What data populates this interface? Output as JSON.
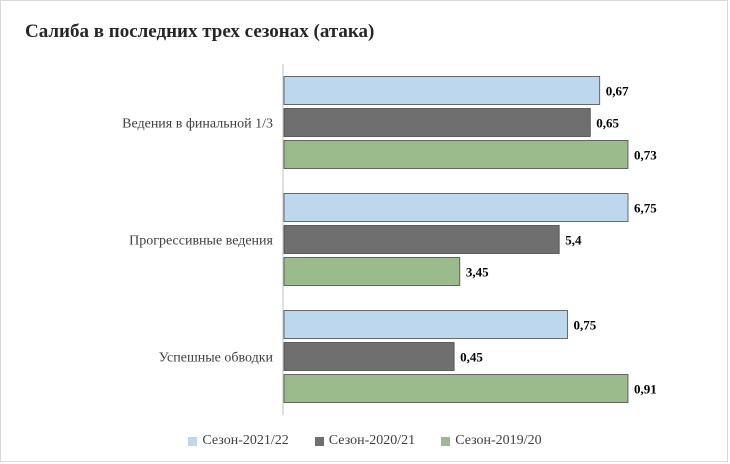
{
  "chart_data": {
    "type": "bar",
    "orientation": "horizontal",
    "title": "Салиба в последних трех сезонах (атака)",
    "categories": [
      "Ведения в финальной 1/3",
      "Прогрессивные ведения",
      "Успешные обводки"
    ],
    "series": [
      {
        "name": "Сезон-2021/22",
        "color": "#bdd7ee",
        "values": [
          0.67,
          6.75,
          0.75
        ],
        "labels": [
          "0,67",
          "6,75",
          "0,75"
        ]
      },
      {
        "name": "Сезон-2020/21",
        "color": "#6f6f6f",
        "values": [
          0.65,
          5.4,
          0.45
        ],
        "labels": [
          "0,65",
          "5,4",
          "0,45"
        ]
      },
      {
        "name": "Сезон-2019/20",
        "color": "#9bbb8c",
        "values": [
          0.73,
          3.45,
          0.91
        ],
        "labels": [
          "0,73",
          "3,45",
          "0,91"
        ]
      }
    ],
    "legend_position": "bottom",
    "gridlines": false
  }
}
